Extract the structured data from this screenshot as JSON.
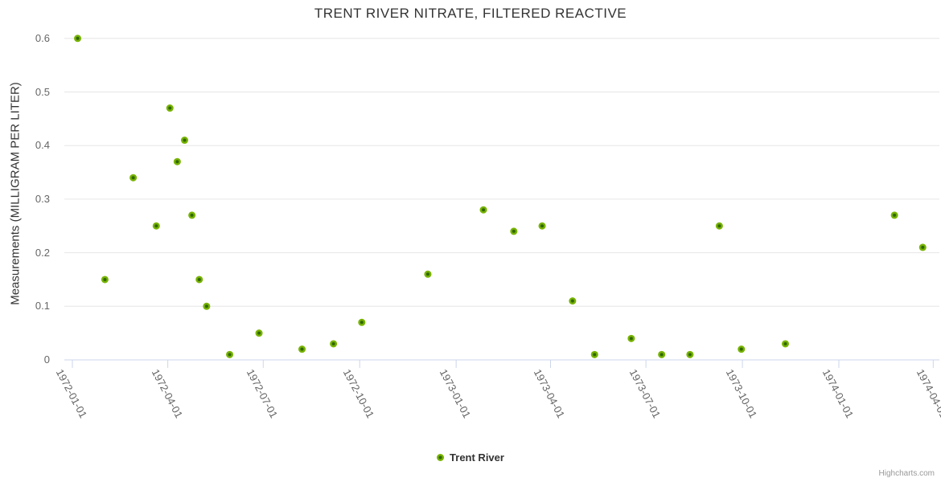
{
  "credits_label": "Highcharts.com",
  "chart_data": {
    "type": "scatter",
    "title": "TRENT RIVER NITRATE, FILTERED REACTIVE",
    "xlabel": "",
    "ylabel": "Measurements (MILLIGRAM PER LITER)",
    "x_type": "datetime",
    "grid": true,
    "legend_position": "bottom-center",
    "ylim": [
      0,
      0.6
    ],
    "y_ticks": [
      0,
      0.1,
      0.2,
      0.3,
      0.4,
      0.5,
      0.6
    ],
    "x_ticks": [
      "1972-01-01",
      "1972-04-01",
      "1972-07-01",
      "1972-10-01",
      "1973-01-01",
      "1973-04-01",
      "1973-07-01",
      "1973-10-01",
      "1974-01-01",
      "1974-04-01"
    ],
    "series": [
      {
        "name": "Trent River",
        "points": [
          {
            "date": "1972-01-06",
            "value": 0.6
          },
          {
            "date": "1972-02-01",
            "value": 0.15
          },
          {
            "date": "1972-02-28",
            "value": 0.34
          },
          {
            "date": "1972-03-21",
            "value": 0.25
          },
          {
            "date": "1972-04-03",
            "value": 0.47
          },
          {
            "date": "1972-04-10",
            "value": 0.37
          },
          {
            "date": "1972-04-17",
            "value": 0.41
          },
          {
            "date": "1972-04-24",
            "value": 0.27
          },
          {
            "date": "1972-05-01",
            "value": 0.15
          },
          {
            "date": "1972-05-08",
            "value": 0.1
          },
          {
            "date": "1972-05-30",
            "value": 0.01
          },
          {
            "date": "1972-06-27",
            "value": 0.05
          },
          {
            "date": "1972-08-07",
            "value": 0.02
          },
          {
            "date": "1972-09-06",
            "value": 0.03
          },
          {
            "date": "1972-10-03",
            "value": 0.07
          },
          {
            "date": "1972-12-05",
            "value": 0.16
          },
          {
            "date": "1973-01-27",
            "value": 0.28
          },
          {
            "date": "1973-02-25",
            "value": 0.24
          },
          {
            "date": "1973-03-24",
            "value": 0.25
          },
          {
            "date": "1973-04-22",
            "value": 0.11
          },
          {
            "date": "1973-05-13",
            "value": 0.01
          },
          {
            "date": "1973-06-17",
            "value": 0.04
          },
          {
            "date": "1973-07-16",
            "value": 0.01
          },
          {
            "date": "1973-08-12",
            "value": 0.01
          },
          {
            "date": "1973-09-09",
            "value": 0.25
          },
          {
            "date": "1973-09-30",
            "value": 0.02
          },
          {
            "date": "1973-11-11",
            "value": 0.03
          },
          {
            "date": "1974-02-23",
            "value": 0.27
          },
          {
            "date": "1974-03-22",
            "value": 0.21
          }
        ]
      }
    ],
    "colors": {
      "marker": "#77b300",
      "marker_center": "#2f6600",
      "gridline": "#e6e6e6",
      "axis_line": "#ccd6eb",
      "title_text": "#333333",
      "tick_text": "#666666"
    }
  }
}
